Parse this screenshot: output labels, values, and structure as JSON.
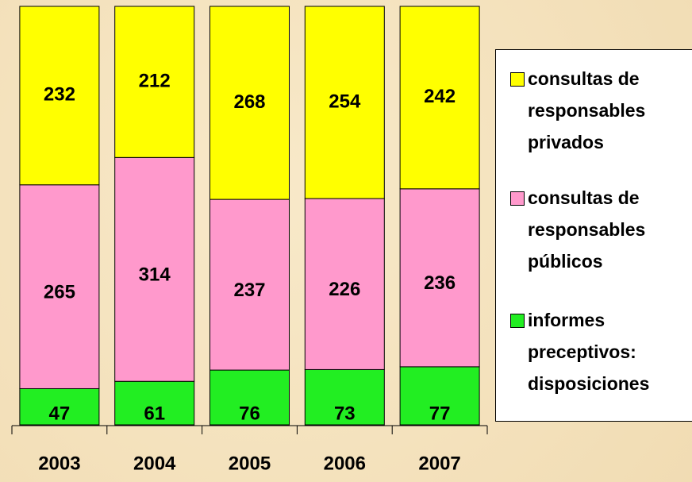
{
  "chart_data": {
    "type": "bar",
    "stacking": "percent",
    "categories": [
      "2003",
      "2004",
      "2005",
      "2006",
      "2007"
    ],
    "series": [
      {
        "name": "informes preceptivos: disposiciones",
        "color": "#22ee22",
        "values": [
          47,
          61,
          76,
          73,
          77
        ]
      },
      {
        "name": "consultas de responsables públicos",
        "color": "#ff99cc",
        "values": [
          265,
          314,
          237,
          226,
          236
        ]
      },
      {
        "name": "consultas de responsables privados",
        "color": "#ffff00",
        "values": [
          232,
          212,
          268,
          254,
          242
        ]
      }
    ],
    "legend": "right"
  }
}
